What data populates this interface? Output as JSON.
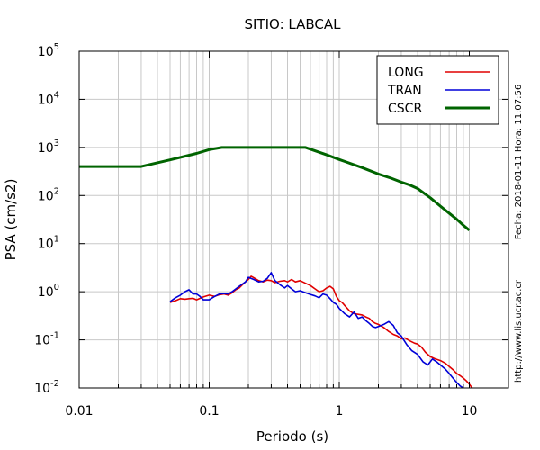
{
  "chart_data": {
    "type": "line",
    "title": "SITIO: LABCAL",
    "xlabel": "Periodo (s)",
    "ylabel": "PSA (cm/s2)",
    "x_scale": "log",
    "y_scale": "log",
    "xlim": [
      0.01,
      20
    ],
    "ylim": [
      0.01,
      100000
    ],
    "x_ticks": [
      {
        "value": 0.01,
        "label": "0.01"
      },
      {
        "value": 0.1,
        "label": "0.1"
      },
      {
        "value": 1,
        "label": "1"
      },
      {
        "value": 10,
        "label": "10"
      }
    ],
    "y_ticks": [
      {
        "value": 0.01,
        "base": "10",
        "exp": "-2"
      },
      {
        "value": 0.1,
        "base": "10",
        "exp": "-1"
      },
      {
        "value": 1,
        "base": "10",
        "exp": "0"
      },
      {
        "value": 10,
        "base": "10",
        "exp": "1"
      },
      {
        "value": 100,
        "base": "10",
        "exp": "2"
      },
      {
        "value": 1000,
        "base": "10",
        "exp": "3"
      },
      {
        "value": 10000,
        "base": "10",
        "exp": "4"
      },
      {
        "value": 100000,
        "base": "10",
        "exp": "5"
      }
    ],
    "grid": true,
    "legend_position": "top-right",
    "series": [
      {
        "name": "LONG",
        "color": "#e00000",
        "width": 1.6,
        "x": [
          0.05,
          0.055,
          0.06,
          0.065,
          0.07,
          0.075,
          0.08,
          0.09,
          0.1,
          0.11,
          0.12,
          0.13,
          0.14,
          0.15,
          0.16,
          0.17,
          0.18,
          0.19,
          0.2,
          0.21,
          0.22,
          0.24,
          0.26,
          0.28,
          0.3,
          0.32,
          0.35,
          0.38,
          0.4,
          0.43,
          0.46,
          0.5,
          0.55,
          0.6,
          0.65,
          0.7,
          0.75,
          0.8,
          0.85,
          0.9,
          0.95,
          1.0,
          1.05,
          1.1,
          1.2,
          1.3,
          1.4,
          1.5,
          1.6,
          1.7,
          1.8,
          1.9,
          2.0,
          2.2,
          2.4,
          2.6,
          2.8,
          3.0,
          3.2,
          3.5,
          3.8,
          4.0,
          4.3,
          4.6,
          5.0,
          5.5,
          6.0,
          6.5,
          7.0,
          7.5,
          8.0,
          8.5,
          9.0,
          9.5,
          10.0,
          10.5
        ],
        "y": [
          0.6,
          0.65,
          0.72,
          0.7,
          0.72,
          0.73,
          0.68,
          0.78,
          0.85,
          0.8,
          0.87,
          0.9,
          0.85,
          0.95,
          1.1,
          1.2,
          1.4,
          1.6,
          1.8,
          2.1,
          1.95,
          1.7,
          1.6,
          1.75,
          1.7,
          1.55,
          1.65,
          1.7,
          1.6,
          1.8,
          1.6,
          1.7,
          1.5,
          1.35,
          1.15,
          1.0,
          1.05,
          1.2,
          1.3,
          1.15,
          0.8,
          0.65,
          0.6,
          0.52,
          0.4,
          0.35,
          0.34,
          0.33,
          0.3,
          0.28,
          0.24,
          0.22,
          0.21,
          0.18,
          0.15,
          0.13,
          0.12,
          0.105,
          0.11,
          0.095,
          0.085,
          0.082,
          0.07,
          0.055,
          0.045,
          0.04,
          0.037,
          0.033,
          0.028,
          0.024,
          0.02,
          0.018,
          0.016,
          0.014,
          0.012,
          0.01
        ]
      },
      {
        "name": "TRAN",
        "color": "#0000d8",
        "width": 1.6,
        "x": [
          0.05,
          0.055,
          0.06,
          0.065,
          0.07,
          0.075,
          0.08,
          0.085,
          0.09,
          0.1,
          0.11,
          0.12,
          0.13,
          0.14,
          0.15,
          0.17,
          0.19,
          0.2,
          0.22,
          0.24,
          0.26,
          0.28,
          0.3,
          0.32,
          0.35,
          0.38,
          0.4,
          0.43,
          0.46,
          0.5,
          0.55,
          0.6,
          0.65,
          0.7,
          0.75,
          0.8,
          0.85,
          0.9,
          0.95,
          1.0,
          1.1,
          1.2,
          1.3,
          1.4,
          1.5,
          1.6,
          1.7,
          1.8,
          1.9,
          2.0,
          2.2,
          2.4,
          2.6,
          2.8,
          3.0,
          3.3,
          3.6,
          4.0,
          4.4,
          4.8,
          5.2,
          5.6,
          6.0,
          6.5,
          7.0,
          7.5,
          8.0,
          8.5,
          9.0
        ],
        "y": [
          0.62,
          0.75,
          0.85,
          1.0,
          1.1,
          0.9,
          0.9,
          0.8,
          0.68,
          0.68,
          0.8,
          0.9,
          0.92,
          0.9,
          1.0,
          1.3,
          1.6,
          2.0,
          1.8,
          1.6,
          1.65,
          1.9,
          2.5,
          1.7,
          1.4,
          1.2,
          1.35,
          1.15,
          1.0,
          1.05,
          0.95,
          0.88,
          0.82,
          0.75,
          0.9,
          0.85,
          0.72,
          0.6,
          0.55,
          0.45,
          0.35,
          0.3,
          0.38,
          0.28,
          0.3,
          0.25,
          0.22,
          0.19,
          0.18,
          0.19,
          0.21,
          0.24,
          0.2,
          0.14,
          0.12,
          0.08,
          0.06,
          0.05,
          0.035,
          0.03,
          0.04,
          0.035,
          0.03,
          0.025,
          0.02,
          0.016,
          0.013,
          0.011,
          0.01
        ]
      },
      {
        "name": "CSCR",
        "color": "#006400",
        "width": 3,
        "x": [
          0.01,
          0.015,
          0.02,
          0.03,
          0.05,
          0.08,
          0.1,
          0.125,
          0.2,
          0.3,
          0.4,
          0.55,
          0.8,
          1.0,
          1.5,
          2.0,
          2.5,
          3.0,
          3.5,
          4.0,
          5.0,
          6.0,
          7.0,
          8.0,
          9.0,
          10.0
        ],
        "y": [
          400,
          400,
          400,
          400,
          550,
          750,
          900,
          1000,
          1000,
          1000,
          1000,
          1000,
          700,
          560,
          380,
          280,
          230,
          190,
          165,
          140,
          90,
          60,
          43,
          32,
          24,
          19
        ]
      }
    ]
  },
  "side": {
    "date_text": "Fecha: 2018-01-11 Hora: 11:07:56",
    "url_text": "http://www.lis.ucr.ac.cr"
  }
}
